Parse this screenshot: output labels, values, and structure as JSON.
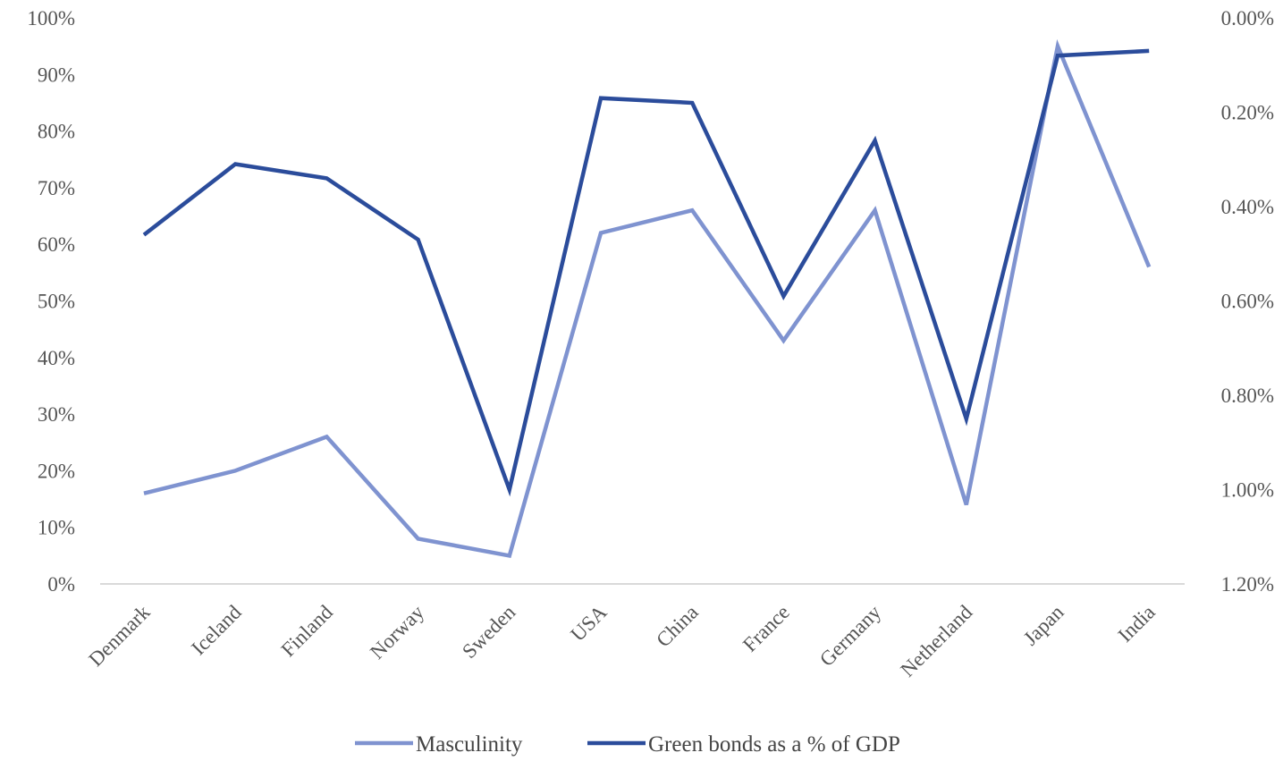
{
  "chart_data": {
    "type": "line",
    "categories": [
      "Denmark",
      "Iceland",
      "Finland",
      "Norway",
      "Sweden",
      "USA",
      "China",
      "France",
      "Germany",
      "Netherland",
      "Japan",
      "India"
    ],
    "series": [
      {
        "name": "Masculinity",
        "axis": "left",
        "color": "#7f93d0",
        "values": [
          16,
          20,
          26,
          8,
          5,
          62,
          66,
          43,
          66,
          14,
          95,
          56
        ]
      },
      {
        "name": "Green bonds as a % of GDP",
        "axis": "right",
        "color": "#2b4c9b",
        "values": [
          0.46,
          0.31,
          0.34,
          0.47,
          1.0,
          0.17,
          0.18,
          0.59,
          0.26,
          0.85,
          0.08,
          0.07
        ]
      }
    ],
    "y_left": {
      "range": [
        0,
        100
      ],
      "ticks": [
        0,
        10,
        20,
        30,
        40,
        50,
        60,
        70,
        80,
        90,
        100
      ],
      "tick_labels": [
        "0%",
        "10%",
        "20%",
        "30%",
        "40%",
        "50%",
        "60%",
        "70%",
        "80%",
        "90%",
        "100%"
      ]
    },
    "y_right": {
      "range": [
        0,
        1.2
      ],
      "reversed": true,
      "ticks": [
        0,
        0.2,
        0.4,
        0.6,
        0.8,
        1.0,
        1.2
      ],
      "tick_labels": [
        "0.00%",
        "0.20%",
        "0.40%",
        "0.60%",
        "0.80%",
        "1.00%",
        "1.20%"
      ]
    },
    "grid": false,
    "legend_position": "bottom",
    "axis_color": "#d9d9d9"
  }
}
